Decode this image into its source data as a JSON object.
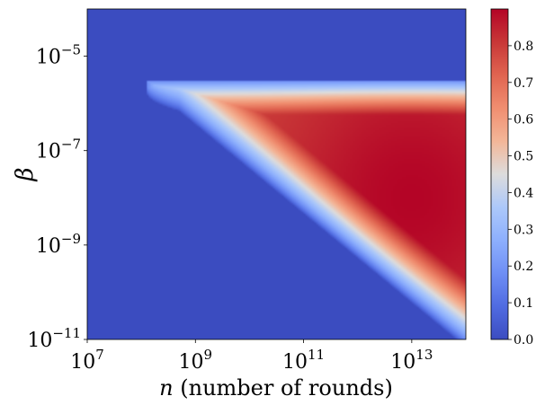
{
  "chart_data": {
    "type": "heatmap",
    "title": "",
    "xlabel": "n (number of rounds)",
    "xlabel_var": "n",
    "xlabel_rest": " (number of rounds)",
    "ylabel": "β",
    "x_scale": "log",
    "y_scale": "log",
    "xlim": [
      10000000,
      100000000000000
    ],
    "ylim": [
      1e-11,
      0.0001
    ],
    "x_ticks": [
      {
        "base": "10",
        "exp": "7",
        "value": 10000000
      },
      {
        "base": "10",
        "exp": "9",
        "value": 1000000000
      },
      {
        "base": "10",
        "exp": "11",
        "value": 100000000000
      },
      {
        "base": "10",
        "exp": "13",
        "value": 10000000000000
      }
    ],
    "y_ticks": [
      {
        "base": "10",
        "exp": "−11",
        "value": 1e-11
      },
      {
        "base": "10",
        "exp": "−9",
        "value": 1e-09
      },
      {
        "base": "10",
        "exp": "−7",
        "value": 1e-07
      },
      {
        "base": "10",
        "exp": "−5",
        "value": 1e-05
      }
    ],
    "region": {
      "description": "non-zero wedge bounded above by beta≈3e-6 and below by a diagonal",
      "upper_beta": 3e-06,
      "tip": {
        "n": 130000000,
        "beta": 2.2e-06
      },
      "lower_line": [
        {
          "n": 500000000,
          "beta": 1e-06
        },
        {
          "n": 100000000000000,
          "beta": 1e-11
        }
      ],
      "peak_value": 0.9,
      "peak_location": {
        "n": 10000000000000,
        "beta": 1e-08
      }
    },
    "colormap": "coolwarm",
    "colorbar": {
      "min": 0.0,
      "max": 0.9,
      "ticks": [
        "0.0",
        "0.1",
        "0.2",
        "0.3",
        "0.4",
        "0.5",
        "0.6",
        "0.7",
        "0.8"
      ]
    },
    "grid": false,
    "legend": "none"
  }
}
